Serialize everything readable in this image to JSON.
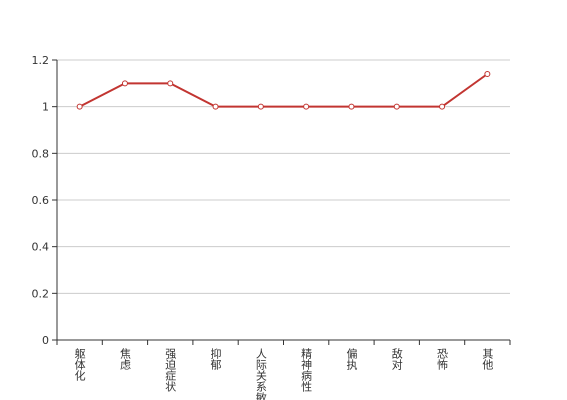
{
  "chart_data": {
    "type": "line",
    "categories": [
      "躯体化",
      "焦虑",
      "强迫症状",
      "抑郁",
      "人际关系敏感",
      "精神病性",
      "偏执",
      "敌对",
      "恐怖",
      "其他"
    ],
    "series": [
      {
        "name": null,
        "color": "#c23531",
        "values": [
          1,
          1.1,
          1.1,
          1,
          1,
          1,
          1,
          1,
          1,
          1.14
        ]
      }
    ],
    "ylim": [
      0,
      1.2
    ],
    "yticks": [
      0,
      0.2,
      0.4,
      0.6,
      0.8,
      1,
      1.2
    ],
    "grid": true
  }
}
